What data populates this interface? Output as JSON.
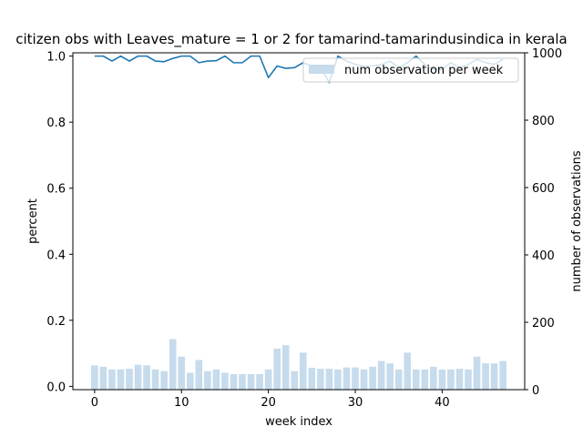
{
  "chart_data": {
    "type": "bar+line",
    "title": "citizen obs with Leaves_mature = 1 or 2 for tamarind-tamarindusindica in kerala",
    "xlabel": "week index",
    "ylabel": "percent",
    "y2label": "number of observations",
    "xlim": [
      -2.5,
      49.5
    ],
    "ylim": [
      -0.01,
      1.01
    ],
    "y2lim": [
      0,
      1000
    ],
    "xticks": [
      0,
      10,
      20,
      30,
      40
    ],
    "yticks": [
      0.0,
      0.2,
      0.4,
      0.6,
      0.8,
      1.0
    ],
    "y2ticks": [
      0,
      200,
      400,
      600,
      800,
      1000
    ],
    "grid": false,
    "legend": {
      "placement": "top-right",
      "entries": [
        "num observation per week"
      ]
    },
    "colors": {
      "line": "#1f77b4",
      "bar": "#c6dbec"
    },
    "x": [
      0,
      1,
      2,
      3,
      4,
      5,
      6,
      7,
      8,
      9,
      10,
      11,
      12,
      13,
      14,
      15,
      16,
      17,
      18,
      19,
      20,
      21,
      22,
      23,
      24,
      25,
      26,
      27,
      28,
      29,
      30,
      31,
      32,
      33,
      34,
      35,
      36,
      37,
      38,
      39,
      40,
      41,
      42,
      43,
      44,
      45,
      46,
      47
    ],
    "series": [
      {
        "name": "num observation per week",
        "axis": "right",
        "kind": "bar",
        "values": [
          72,
          68,
          60,
          60,
          62,
          74,
          72,
          60,
          55,
          150,
          98,
          50,
          88,
          55,
          60,
          50,
          46,
          46,
          46,
          46,
          60,
          122,
          132,
          55,
          110,
          65,
          62,
          62,
          60,
          66,
          66,
          60,
          68,
          85,
          78,
          60,
          110,
          60,
          60,
          68,
          60,
          60,
          62,
          60,
          98,
          78,
          78,
          85
        ]
      },
      {
        "name": "percent",
        "axis": "left",
        "kind": "line",
        "values": [
          1.0,
          1.0,
          0.985,
          1.0,
          0.985,
          1.0,
          1.0,
          0.985,
          0.983,
          0.993,
          1.0,
          1.0,
          0.98,
          0.985,
          0.986,
          1.0,
          0.98,
          0.98,
          1.0,
          1.0,
          0.935,
          0.97,
          0.963,
          0.965,
          0.98,
          0.97,
          0.967,
          0.92,
          1.0,
          0.985,
          0.975,
          0.97,
          0.97,
          0.975,
          0.985,
          0.965,
          0.98,
          1.0,
          0.975,
          0.96,
          0.96,
          0.98,
          0.965,
          0.975,
          0.99,
          0.98,
          0.975,
          0.99
        ]
      }
    ]
  }
}
